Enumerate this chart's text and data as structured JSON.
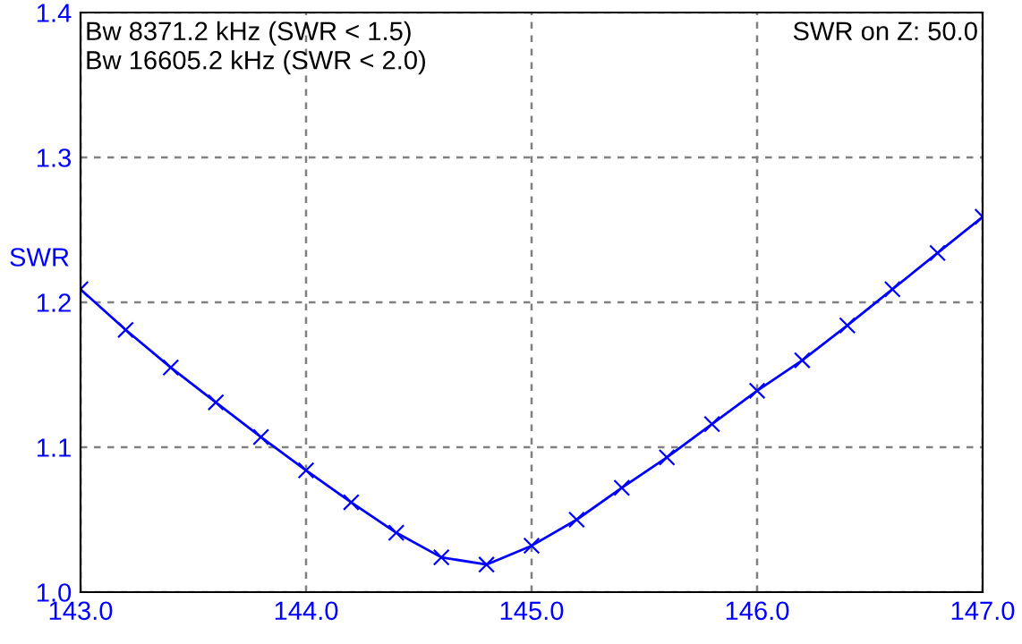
{
  "chart_data": {
    "type": "line",
    "ylabel": "SWR",
    "annotations": [
      "Bw 8371.2 kHz (SWR < 1.5)\nBw 16605.2 kHz (SWR < 2.0)",
      "SWR on Z: 50.0"
    ],
    "x": [
      143.0,
      143.2,
      143.4,
      143.6,
      143.8,
      144.0,
      144.2,
      144.4,
      144.6,
      144.8,
      145.0,
      145.2,
      145.4,
      145.6,
      145.8,
      146.0,
      146.2,
      146.4,
      146.6,
      146.8,
      147.0
    ],
    "series": [
      {
        "color": "#0000ff",
        "values": [
          1.209,
          1.181,
          1.155,
          1.131,
          1.107,
          1.084,
          1.062,
          1.041,
          1.024,
          1.019,
          1.032,
          1.05,
          1.072,
          1.093,
          1.116,
          1.139,
          1.16,
          1.184,
          1.209,
          1.234,
          1.259
        ]
      }
    ],
    "xlim": [
      143.0,
      147.0
    ],
    "ylim": [
      1.0,
      1.4
    ],
    "xticks": [
      {
        "value": 143,
        "label": "143.0"
      },
      {
        "value": 144,
        "label": "144.0"
      },
      {
        "value": 145,
        "label": "145.0"
      },
      {
        "value": 146,
        "label": "146.0"
      },
      {
        "value": 147,
        "label": "147.0"
      }
    ],
    "yticks": [
      {
        "value": 1,
        "label": "1.0"
      },
      {
        "value": 1.1,
        "label": "1.1"
      },
      {
        "value": 1.2,
        "label": "1.2"
      },
      {
        "value": 1.3,
        "label": "1.3"
      },
      {
        "value": 1.4,
        "label": "1.4"
      }
    ],
    "grid": true,
    "marker": "cross",
    "line_style": "solid",
    "legend": false
  }
}
